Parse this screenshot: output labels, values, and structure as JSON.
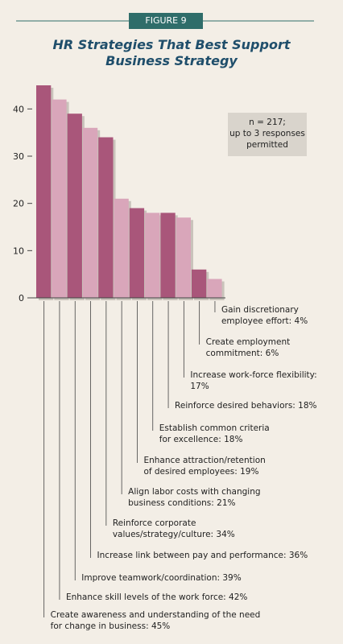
{
  "figure_label": "FIGURE 9",
  "chart_data": {
    "type": "bar",
    "title": "HR Strategies That Best Support\nBusiness Strategy",
    "annotation": "n = 217;\nup to 3 responses\npermitted",
    "categories": [
      "Create awareness and understanding of the need\nfor change in business: 45%",
      "Enhance skill levels of the work force: 42%",
      "Improve teamwork/coordination: 39%",
      "Increase link between pay and performance: 36%",
      "Reinforce corporate\nvalues/strategy/culture: 34%",
      "Align labor costs with changing\nbusiness conditions: 21%",
      "Enhance attraction/retention\nof desired employees: 19%",
      "Establish common criteria\nfor excellence: 18%",
      "Reinforce desired behaviors: 18%",
      "Increase work-force flexibility:\n17%",
      "Create employment\ncommitment: 6%",
      "Gain discretionary\nemployee effort: 4%"
    ],
    "values": [
      45,
      42,
      39,
      36,
      34,
      21,
      19,
      18,
      18,
      17,
      6,
      4
    ],
    "colors": [
      "#a9567a",
      "#d9a6ba",
      "#a9567a",
      "#d9a6ba",
      "#a9567a",
      "#d9a6ba",
      "#a9567a",
      "#d9a6ba",
      "#a9567a",
      "#d9a6ba",
      "#a9567a",
      "#d9a6ba"
    ],
    "ylim": [
      0,
      45
    ],
    "yticks": [
      0,
      10,
      20,
      30,
      40
    ]
  }
}
